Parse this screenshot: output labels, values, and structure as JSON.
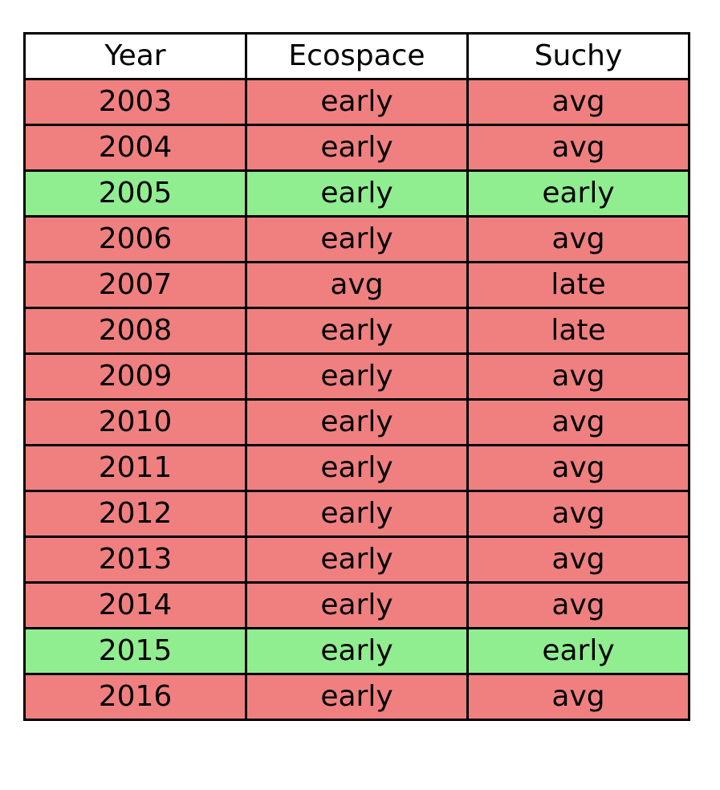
{
  "colors": {
    "mismatch": "#f08080",
    "match": "#90ee90",
    "header": "#ffffff",
    "border": "#000000"
  },
  "chart_data": {
    "type": "table",
    "columns": [
      "Year",
      "Ecospace",
      "Suchy"
    ],
    "rows": [
      {
        "cells": [
          "2003",
          "early",
          "avg"
        ],
        "match": false
      },
      {
        "cells": [
          "2004",
          "early",
          "avg"
        ],
        "match": false
      },
      {
        "cells": [
          "2005",
          "early",
          "early"
        ],
        "match": true
      },
      {
        "cells": [
          "2006",
          "early",
          "avg"
        ],
        "match": false
      },
      {
        "cells": [
          "2007",
          "avg",
          "late"
        ],
        "match": false
      },
      {
        "cells": [
          "2008",
          "early",
          "late"
        ],
        "match": false
      },
      {
        "cells": [
          "2009",
          "early",
          "avg"
        ],
        "match": false
      },
      {
        "cells": [
          "2010",
          "early",
          "avg"
        ],
        "match": false
      },
      {
        "cells": [
          "2011",
          "early",
          "avg"
        ],
        "match": false
      },
      {
        "cells": [
          "2012",
          "early",
          "avg"
        ],
        "match": false
      },
      {
        "cells": [
          "2013",
          "early",
          "avg"
        ],
        "match": false
      },
      {
        "cells": [
          "2014",
          "early",
          "avg"
        ],
        "match": false
      },
      {
        "cells": [
          "2015",
          "early",
          "early"
        ],
        "match": true
      },
      {
        "cells": [
          "2016",
          "early",
          "avg"
        ],
        "match": false
      }
    ]
  }
}
